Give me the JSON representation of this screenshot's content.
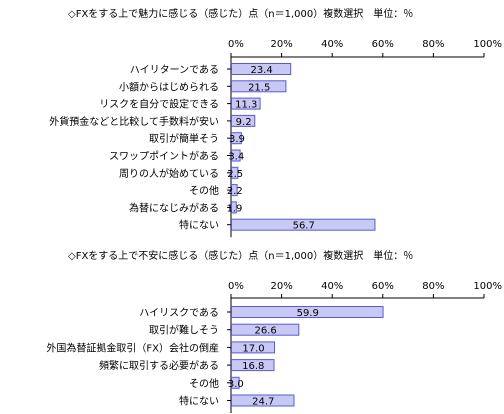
{
  "chart_data": [
    {
      "type": "bar",
      "orientation": "horizontal",
      "title": "◇FXをする上で魅力に感じる（感じた）点（n＝1,000）複数選択　単位：％",
      "xlim": [
        0,
        100
      ],
      "ticks": [
        "0%",
        "20%",
        "40%",
        "60%",
        "80%",
        "100%"
      ],
      "categories": [
        "ハイリターンである",
        "小額からはじめられる",
        "リスクを自分で設定できる",
        "外貨預金などと比較して手数料が安い",
        "取引が簡単そう",
        "スワップポイントがある",
        "周りの人が始めている",
        "その他",
        "為替になじみがある",
        "特にない"
      ],
      "values": [
        23.4,
        21.5,
        11.3,
        9.2,
        3.9,
        3.4,
        2.5,
        2.2,
        1.9,
        56.7
      ],
      "labels": [
        "23.4",
        "21.5",
        "11.3",
        "9.2",
        "3.9",
        "3.4",
        "2.5",
        "2.2",
        "1.9",
        "56.7"
      ],
      "bar_color": "#c8c8f4",
      "bar_border": "#5a5ad0",
      "grid": false
    },
    {
      "type": "bar",
      "orientation": "horizontal",
      "title": "◇FXをする上で不安に感じる（感じた）点（n＝1,000）複数選択　単位：％",
      "xlim": [
        0,
        100
      ],
      "ticks": [
        "0%",
        "20%",
        "40%",
        "60%",
        "80%",
        "100%"
      ],
      "categories": [
        "ハイリスクである",
        "取引が難しそう",
        "外国為替証拠金取引（FX）会社の倒産",
        "頻繁に取引する必要がある",
        "その他",
        "特にない"
      ],
      "values": [
        59.9,
        26.6,
        17.0,
        16.8,
        3.0,
        24.7
      ],
      "labels": [
        "59.9",
        "26.6",
        "17.0",
        "16.8",
        "3.0",
        "24.7"
      ],
      "bar_color": "#c8c8f4",
      "bar_border": "#5a5ad0",
      "grid": false
    }
  ]
}
